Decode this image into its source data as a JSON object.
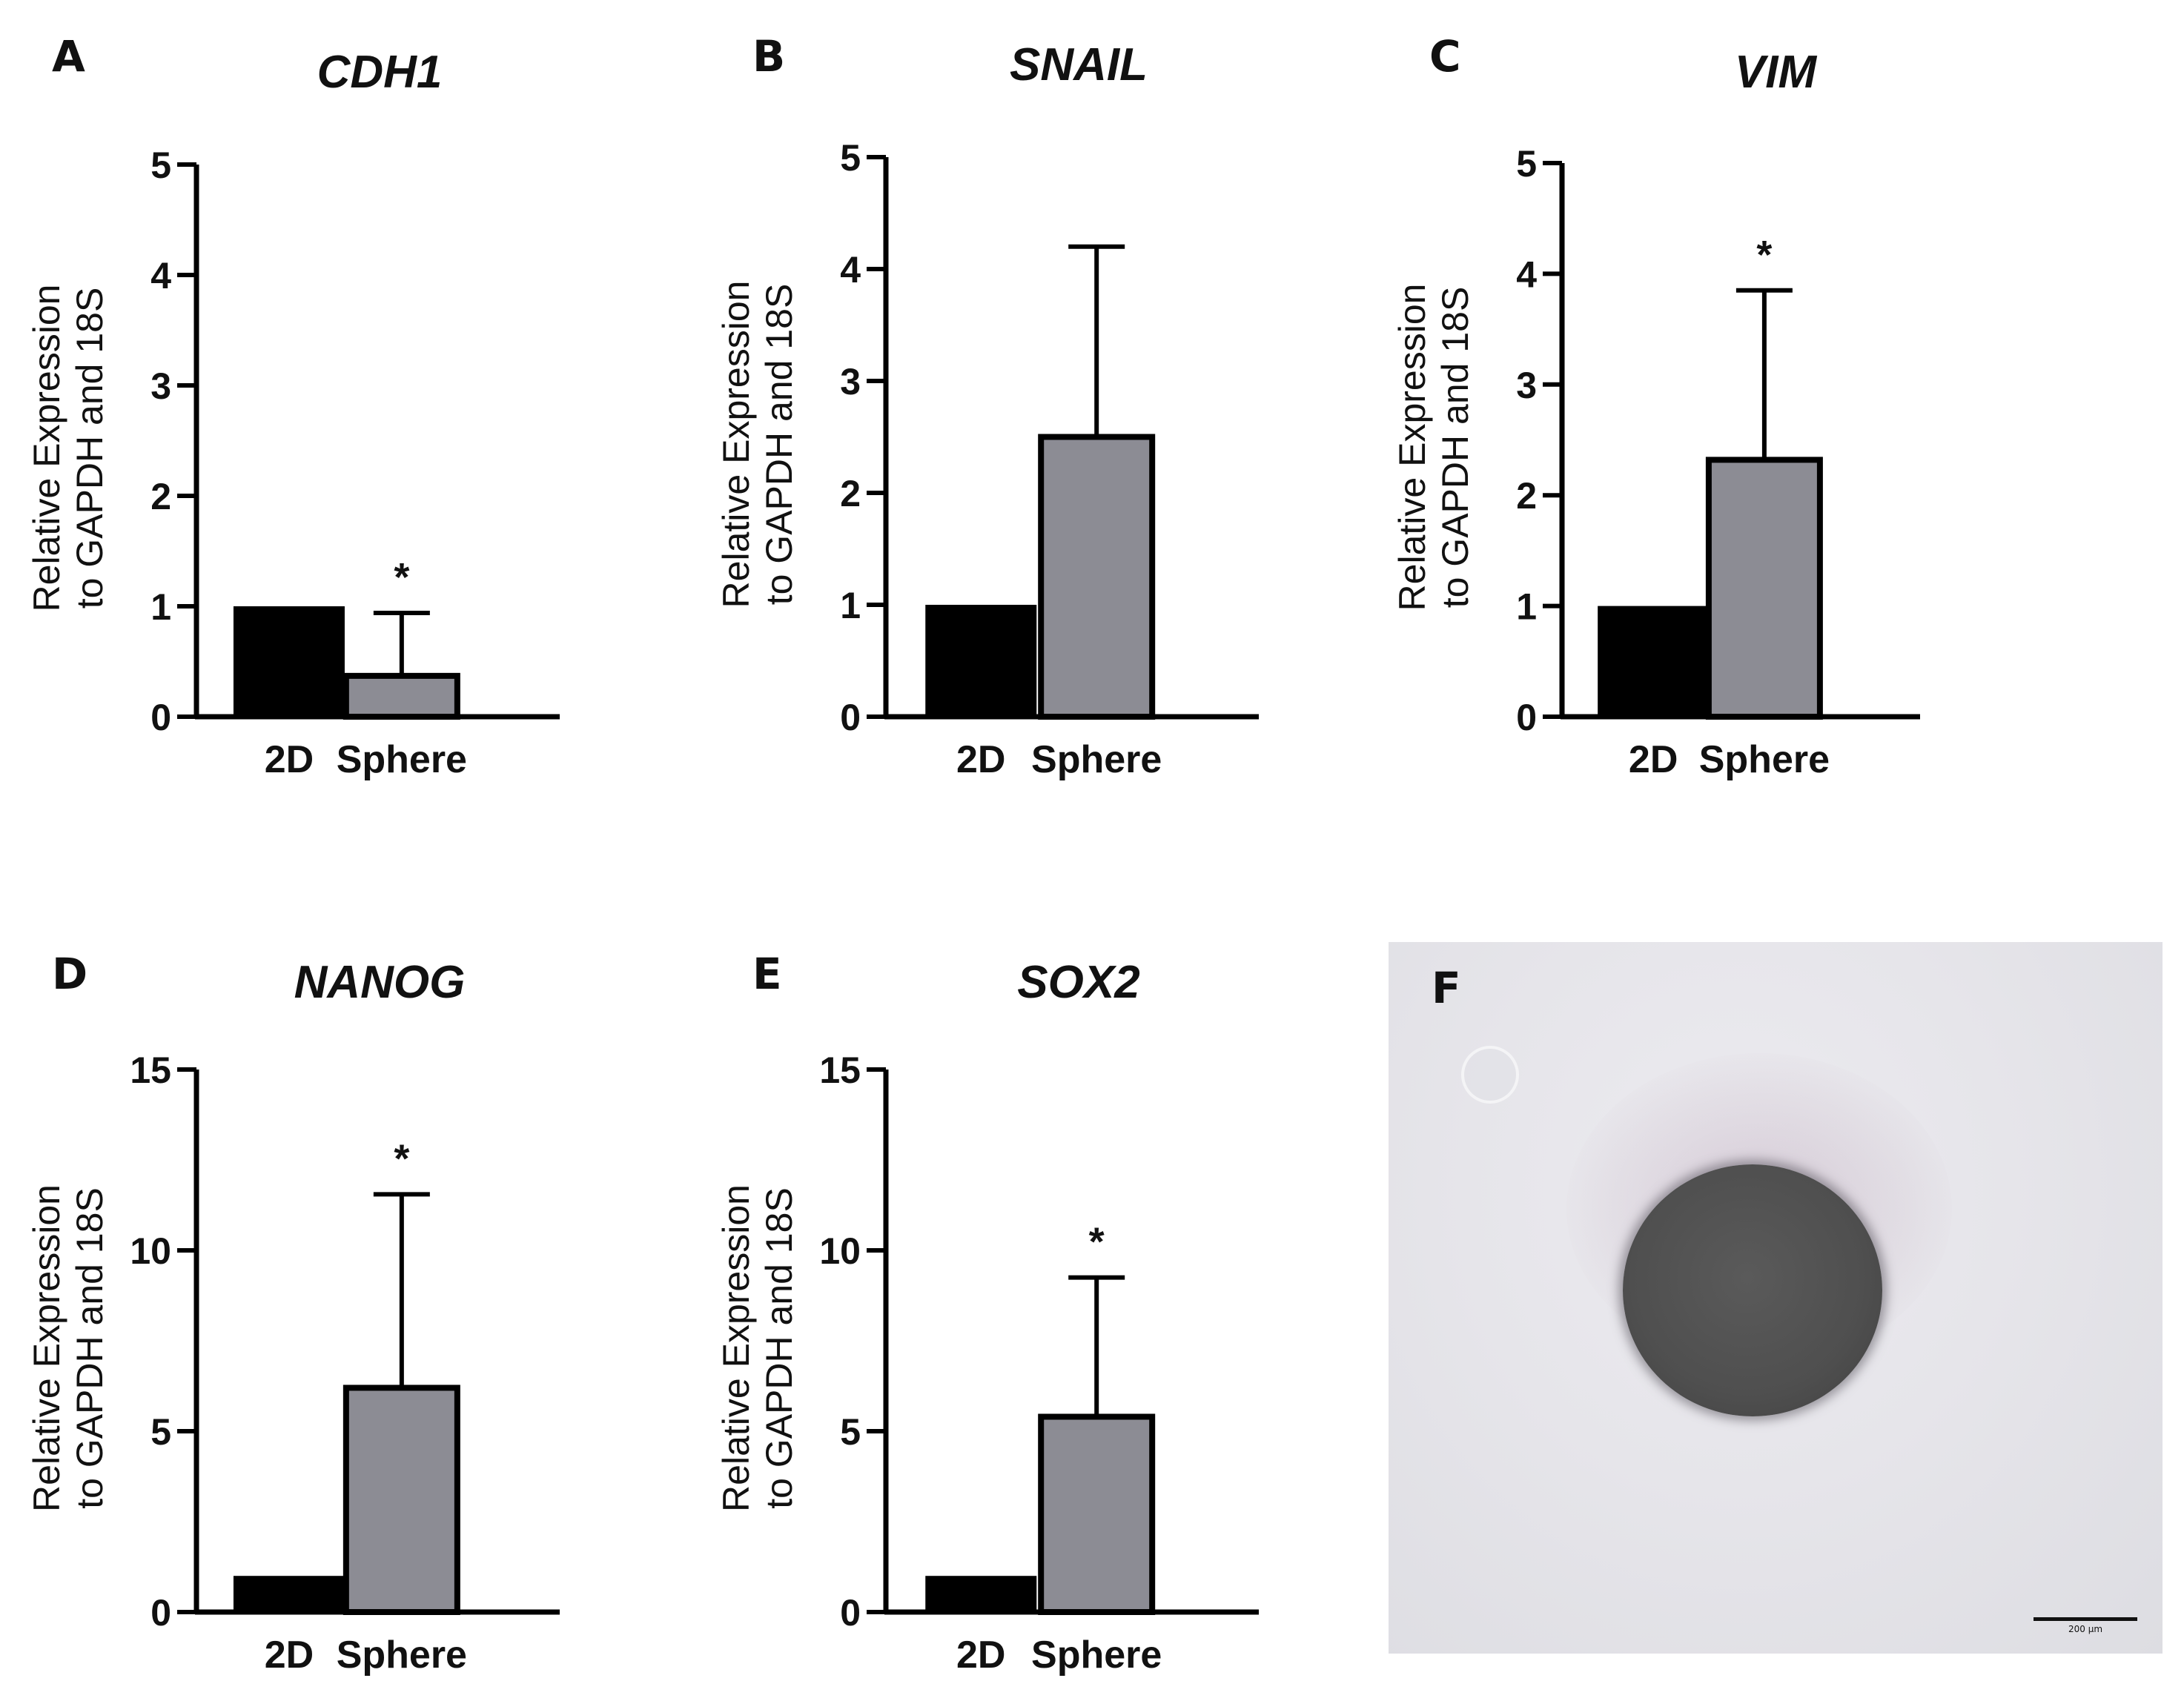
{
  "chart_data": [
    {
      "panel": "A",
      "title": "CDH1",
      "type": "bar",
      "categories": [
        "2D",
        "Sphere"
      ],
      "values": [
        1.0,
        0.37
      ],
      "errors": [
        0,
        0.57
      ],
      "significance": [
        "",
        "*"
      ],
      "ylabel": [
        "Relative Expression",
        "to GAPDH and 18S"
      ],
      "ylim": [
        0,
        5
      ],
      "yticks": [
        0,
        1,
        2,
        3,
        4,
        5
      ],
      "colors": [
        "#000000",
        "#8c8c94"
      ],
      "grid": false,
      "legend": "none"
    },
    {
      "panel": "B",
      "title": "SNAIL",
      "type": "bar",
      "categories": [
        "2D",
        "Sphere"
      ],
      "values": [
        1.0,
        2.5
      ],
      "errors": [
        0,
        1.7
      ],
      "significance": [
        "",
        ""
      ],
      "ylabel": [
        "Relative Expression",
        "to GAPDH and 18S"
      ],
      "ylim": [
        0,
        5
      ],
      "yticks": [
        0,
        1,
        2,
        3,
        4,
        5
      ],
      "colors": [
        "#000000",
        "#8c8c94"
      ],
      "grid": false,
      "legend": "none"
    },
    {
      "panel": "C",
      "title": "VIM",
      "type": "bar",
      "categories": [
        "2D",
        "Sphere"
      ],
      "values": [
        1.0,
        2.32
      ],
      "errors": [
        0,
        1.53
      ],
      "significance": [
        "",
        "*"
      ],
      "ylabel": [
        "Relative Expression",
        "to GAPDH and 18S"
      ],
      "ylim": [
        0,
        5
      ],
      "yticks": [
        0,
        1,
        2,
        3,
        4,
        5
      ],
      "colors": [
        "#000000",
        "#8c8c94"
      ],
      "grid": false,
      "legend": "none"
    },
    {
      "panel": "D",
      "title": "NANOG",
      "type": "bar",
      "categories": [
        "2D",
        "Sphere"
      ],
      "values": [
        1.0,
        6.2
      ],
      "errors": [
        0,
        5.35
      ],
      "significance": [
        "",
        "*"
      ],
      "ylabel": [
        "Relative Expression",
        "to GAPDH and 18S"
      ],
      "ylim": [
        0,
        15
      ],
      "yticks": [
        0,
        5,
        10,
        15
      ],
      "colors": [
        "#000000",
        "#8c8c94"
      ],
      "grid": false,
      "legend": "none"
    },
    {
      "panel": "E",
      "title": "SOX2",
      "type": "bar",
      "categories": [
        "2D",
        "Sphere"
      ],
      "values": [
        1.0,
        5.4
      ],
      "errors": [
        0,
        3.85
      ],
      "significance": [
        "",
        "*"
      ],
      "ylabel": [
        "Relative Expression",
        "to GAPDH and 18S"
      ],
      "ylim": [
        0,
        15
      ],
      "yticks": [
        0,
        5,
        10,
        15
      ],
      "colors": [
        "#000000",
        "#8c8c94"
      ],
      "grid": false,
      "legend": "none"
    }
  ],
  "image_panel": {
    "letter": "F",
    "scale_bar_label": "200 µm"
  }
}
